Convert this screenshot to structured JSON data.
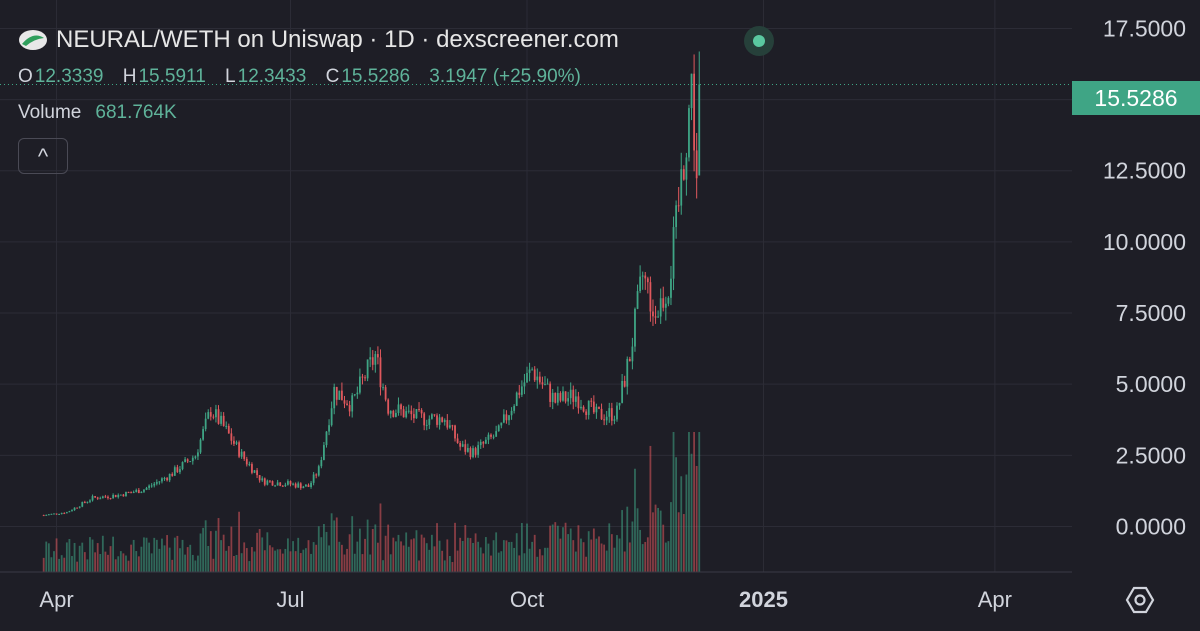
{
  "header": {
    "title": "NEURAL/WETH on Uniswap · 1D · dexscreener.com",
    "logo_icon": "dexscreener-logo-icon",
    "status": "live-indicator"
  },
  "ohlc": {
    "o_label": "O",
    "o": "12.3339",
    "h_label": "H",
    "h": "15.5911",
    "l_label": "L",
    "l": "12.3433",
    "c_label": "C",
    "c": "15.5286",
    "change": "3.1947 (+25.90%)"
  },
  "volume": {
    "label": "Volume",
    "value": "681.764K"
  },
  "collapse_button": "^",
  "last_price_label": "15.5286",
  "colors": {
    "background": "#1e1e26",
    "up": "#3fa585",
    "down": "#e0585d",
    "grid": "#2c2c36",
    "axis_text": "#d1d4dc"
  },
  "chart_data": {
    "type": "candlestick",
    "title": "NEURAL/WETH on Uniswap · 1D · dexscreener.com",
    "x_ticks": [
      "Apr",
      "Jul",
      "Oct",
      "2025",
      "Apr"
    ],
    "y_ticks": [
      "17.5000",
      "15.0000",
      "12.5000",
      "10.0000",
      "7.5000",
      "5.0000",
      "2.5000",
      "0.0000"
    ],
    "ylim": [
      -1.6,
      18.5
    ],
    "x_range": [
      "2024-03-10",
      "2025-05-01"
    ],
    "grid": true,
    "legend": "none",
    "price_anchors": [
      [
        "2024-03-27",
        0.4
      ],
      [
        "2024-04-05",
        0.5
      ],
      [
        "2024-04-15",
        1.0
      ],
      [
        "2024-04-25",
        1.1
      ],
      [
        "2024-05-05",
        1.3
      ],
      [
        "2024-05-15",
        1.8
      ],
      [
        "2024-05-25",
        2.5
      ],
      [
        "2024-05-31",
        4.1
      ],
      [
        "2024-06-05",
        3.5
      ],
      [
        "2024-06-12",
        2.5
      ],
      [
        "2024-06-20",
        1.6
      ],
      [
        "2024-06-30",
        1.5
      ],
      [
        "2024-07-08",
        1.4
      ],
      [
        "2024-07-12",
        2.0
      ],
      [
        "2024-07-18",
        4.8
      ],
      [
        "2024-07-25",
        4.3
      ],
      [
        "2024-07-30",
        5.3
      ],
      [
        "2024-08-03",
        6.0
      ],
      [
        "2024-08-08",
        4.2
      ],
      [
        "2024-08-20",
        3.8
      ],
      [
        "2024-08-30",
        3.8
      ],
      [
        "2024-09-05",
        2.8
      ],
      [
        "2024-09-10",
        2.6
      ],
      [
        "2024-09-20",
        3.3
      ],
      [
        "2024-09-28",
        4.8
      ],
      [
        "2024-10-03",
        5.5
      ],
      [
        "2024-10-12",
        4.4
      ],
      [
        "2024-10-20",
        4.6
      ],
      [
        "2024-10-28",
        3.9
      ],
      [
        "2024-11-05",
        4.0
      ],
      [
        "2024-11-10",
        6.0
      ],
      [
        "2024-11-15",
        8.8
      ],
      [
        "2024-11-20",
        7.5
      ],
      [
        "2024-11-25",
        8.5
      ],
      [
        "2024-11-28",
        10.5
      ],
      [
        "2024-12-01",
        13.0
      ],
      [
        "2024-12-04",
        15.5
      ],
      [
        "2024-12-06",
        12.3
      ],
      [
        "2024-12-07",
        15.53
      ]
    ],
    "last": {
      "open": 12.3339,
      "high": 15.5911,
      "low": 12.3433,
      "close": 15.5286,
      "change": 3.1947,
      "change_pct": 25.9,
      "volume": "681.764K"
    }
  }
}
